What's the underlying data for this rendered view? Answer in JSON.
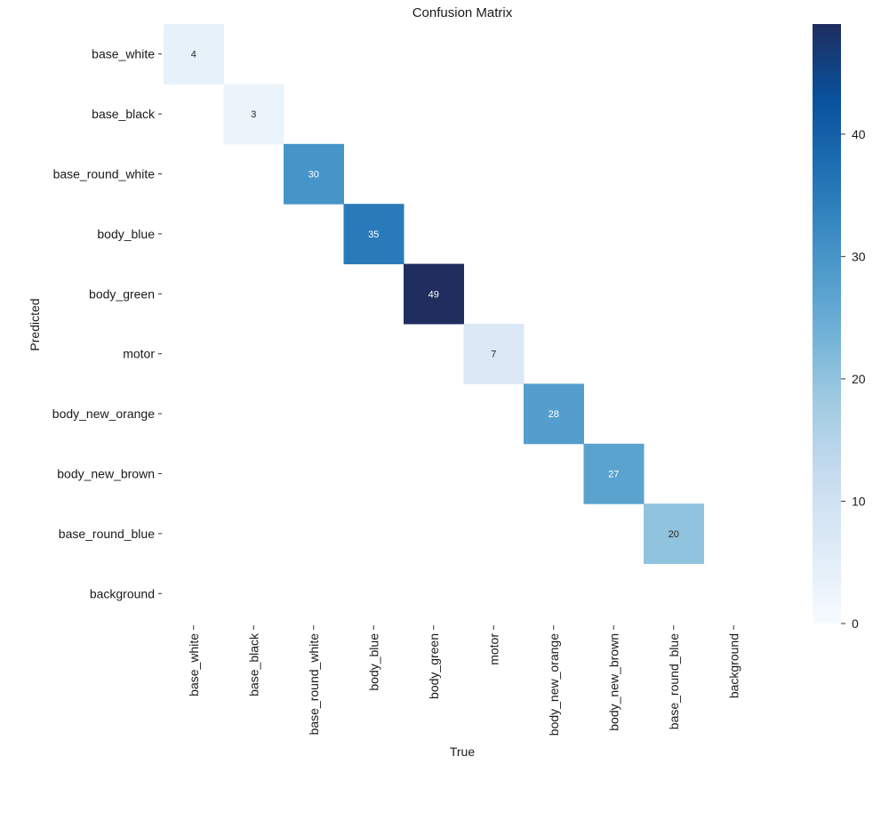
{
  "chart_data": {
    "type": "heatmap",
    "title": "Confusion Matrix",
    "xlabel": "True",
    "ylabel": "Predicted",
    "x_categories": [
      "base_white",
      "base_black",
      "base_round_white",
      "body_blue",
      "body_green",
      "motor",
      "body_new_orange",
      "body_new_brown",
      "base_round_blue",
      "background"
    ],
    "y_categories": [
      "base_white",
      "base_black",
      "base_round_white",
      "body_blue",
      "body_green",
      "motor",
      "body_new_orange",
      "body_new_brown",
      "base_round_blue",
      "background"
    ],
    "values": [
      [
        4,
        0,
        0,
        0,
        0,
        0,
        0,
        0,
        0,
        0
      ],
      [
        0,
        3,
        0,
        0,
        0,
        0,
        0,
        0,
        0,
        0
      ],
      [
        0,
        0,
        30,
        0,
        0,
        0,
        0,
        0,
        0,
        0
      ],
      [
        0,
        0,
        0,
        35,
        0,
        0,
        0,
        0,
        0,
        0
      ],
      [
        0,
        0,
        0,
        0,
        49,
        0,
        0,
        0,
        0,
        0
      ],
      [
        0,
        0,
        0,
        0,
        0,
        7,
        0,
        0,
        0,
        0
      ],
      [
        0,
        0,
        0,
        0,
        0,
        0,
        28,
        0,
        0,
        0
      ],
      [
        0,
        0,
        0,
        0,
        0,
        0,
        0,
        27,
        0,
        0
      ],
      [
        0,
        0,
        0,
        0,
        0,
        0,
        0,
        0,
        20,
        0
      ],
      [
        0,
        0,
        0,
        0,
        0,
        0,
        0,
        0,
        0,
        0
      ]
    ],
    "zero_cells_blank": true,
    "colorbar": {
      "range": [
        0,
        49
      ],
      "ticks": [
        0,
        10,
        20,
        30,
        40
      ],
      "tick_labels": [
        "0",
        "10",
        "20",
        "30",
        "40"
      ],
      "colormap": "Blues",
      "stops": [
        "#f7fbff",
        "#deebf7",
        "#c6dbef",
        "#9ecae1",
        "#6baed6",
        "#4292c6",
        "#2171b5",
        "#08519c",
        "#1f2d5f"
      ]
    },
    "grid": false
  }
}
